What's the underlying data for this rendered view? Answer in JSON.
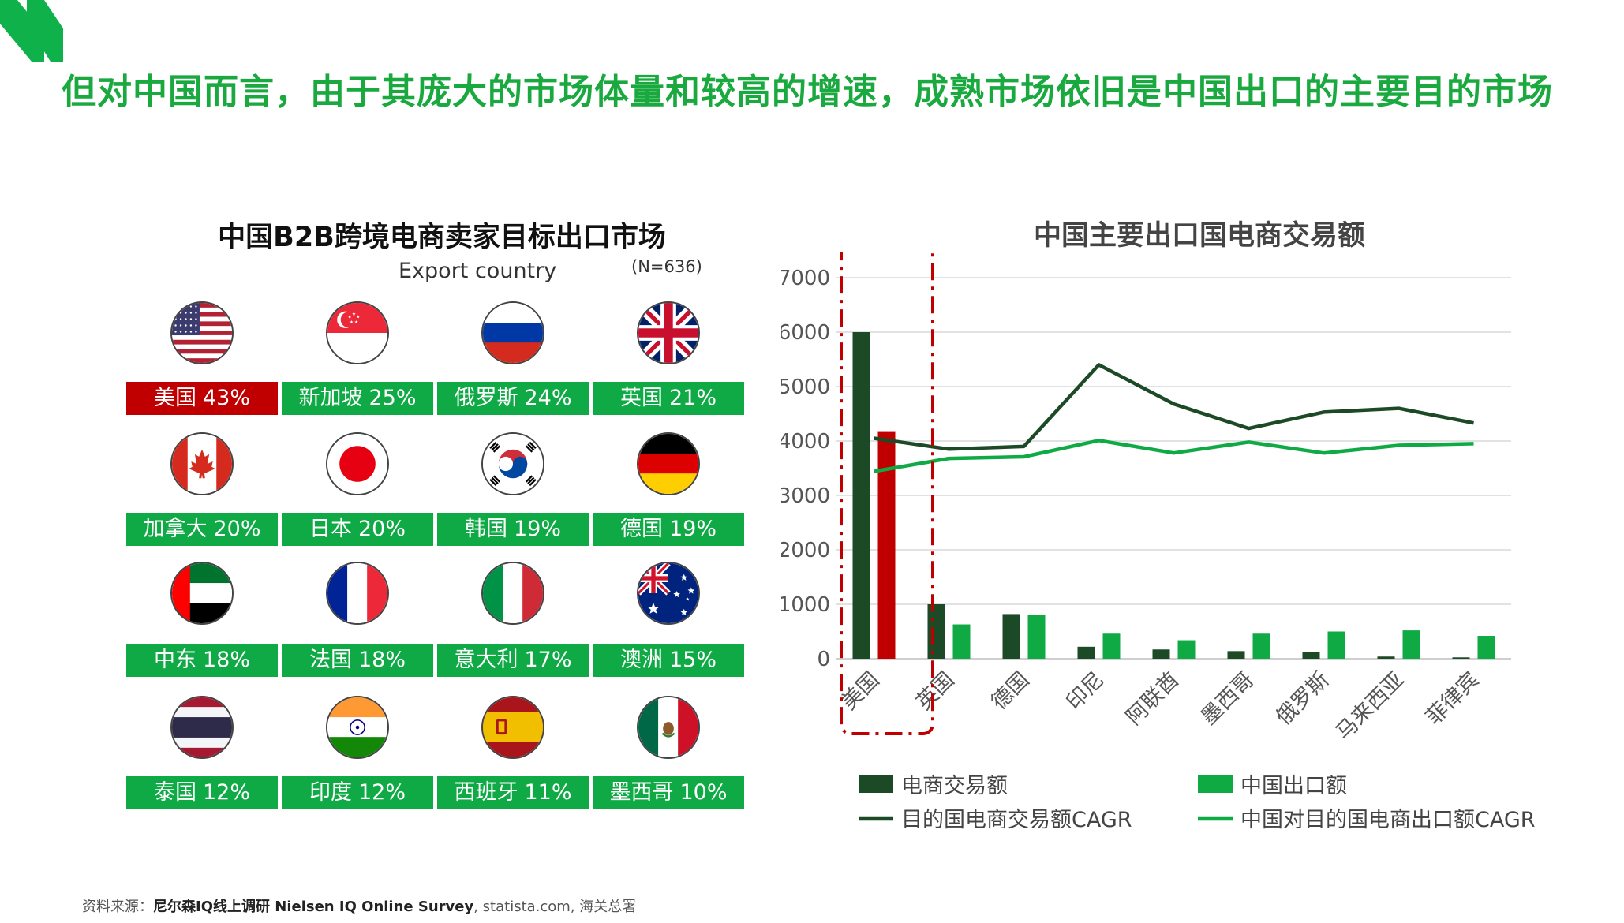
{
  "headline": "但对中国而言，由于其庞大的市场体量和较高的增速，成熟市场依旧是中国出口的主要目的市场",
  "left_panel": {
    "title": "中国B2B跨境电商卖家目标出口市场",
    "subtitle": "Export country",
    "sample": "(N=636)",
    "highlight_color": "#c00000",
    "label_color": "#0faa45",
    "markets": [
      {
        "name": "美国",
        "pct": "43%",
        "flag": "us-flag-icon"
      },
      {
        "name": "新加坡",
        "pct": "25%",
        "flag": "singapore-flag-icon"
      },
      {
        "name": "俄罗斯",
        "pct": "24%",
        "flag": "russia-flag-icon"
      },
      {
        "name": "英国",
        "pct": "21%",
        "flag": "uk-flag-icon"
      },
      {
        "name": "加拿大",
        "pct": "20%",
        "flag": "canada-flag-icon"
      },
      {
        "name": "日本",
        "pct": "20%",
        "flag": "japan-flag-icon"
      },
      {
        "name": "韩国",
        "pct": "19%",
        "flag": "korea-flag-icon"
      },
      {
        "name": "德国",
        "pct": "19%",
        "flag": "germany-flag-icon"
      },
      {
        "name": "中东",
        "pct": "18%",
        "flag": "uae-flag-icon"
      },
      {
        "name": "法国",
        "pct": "18%",
        "flag": "france-flag-icon"
      },
      {
        "name": "意大利",
        "pct": "17%",
        "flag": "italy-flag-icon"
      },
      {
        "name": "澳洲",
        "pct": "15%",
        "flag": "australia-flag-icon"
      },
      {
        "name": "泰国",
        "pct": "12%",
        "flag": "thailand-flag-icon"
      },
      {
        "name": "印度",
        "pct": "12%",
        "flag": "india-flag-icon"
      },
      {
        "name": "西班牙",
        "pct": "11%",
        "flag": "spain-flag-icon"
      },
      {
        "name": "墨西哥",
        "pct": "10%",
        "flag": "mexico-flag-icon"
      }
    ]
  },
  "chart_data": {
    "type": "bar",
    "title": "中国主要出口国电商交易额",
    "categories": [
      "美国",
      "英国",
      "德国",
      "印尼",
      "阿联酋",
      "墨西哥",
      "俄罗斯",
      "马来西亚",
      "菲律宾"
    ],
    "ylim": [
      0,
      7000
    ],
    "yticks": [
      0,
      1000,
      2000,
      3000,
      4000,
      5000,
      6000,
      7000
    ],
    "grid": true,
    "legend_position": "bottom",
    "series": [
      {
        "name": "电商交易额",
        "kind": "bar",
        "color": "#1d4a26",
        "values": [
          6000,
          1000,
          820,
          220,
          170,
          140,
          130,
          40,
          25
        ]
      },
      {
        "name": "中国出口额",
        "kind": "bar",
        "color": "#10aa45",
        "values": [
          4180,
          630,
          800,
          460,
          340,
          460,
          500,
          520,
          420
        ]
      },
      {
        "name": "目的国电商交易额CAGR",
        "kind": "line",
        "color": "#1d4a26",
        "values": [
          4050,
          3850,
          3900,
          5400,
          4680,
          4230,
          4530,
          4600,
          4330
        ]
      },
      {
        "name": "中国对目的国电商出口额CAGR",
        "kind": "line",
        "color": "#10aa45",
        "values": [
          3440,
          3680,
          3710,
          4010,
          3780,
          3980,
          3780,
          3920,
          3950
        ]
      }
    ],
    "highlight": {
      "category": "美国",
      "bar_color": "#c00000",
      "frame_color": "#c00000"
    }
  },
  "source": {
    "prefix": "资料来源：",
    "bold": "尼尔森IQ线上调研 Nielsen IQ Online Survey",
    "rest": ", statista.com, 海关总署"
  }
}
